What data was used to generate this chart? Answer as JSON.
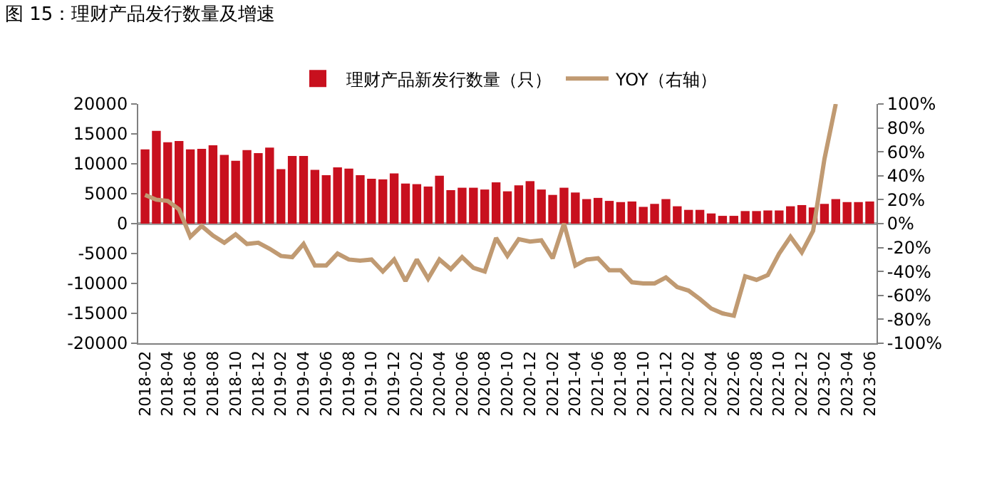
{
  "chart_data": {
    "type": "bar",
    "title": "图 15：理财产品发行数量及增速",
    "categories": [
      "2018-02",
      null,
      "2018-04",
      null,
      "2018-06",
      null,
      "2018-08",
      null,
      "2018-10",
      null,
      "2018-12",
      null,
      "2019-02",
      null,
      "2019-04",
      null,
      "2019-06",
      null,
      "2019-08",
      null,
      "2019-10",
      null,
      "2019-12",
      null,
      "2020-02",
      null,
      "2020-04",
      null,
      "2020-06",
      null,
      "2020-08",
      null,
      "2020-10",
      null,
      "2020-12",
      null,
      "2021-02",
      null,
      "2021-04",
      null,
      "2021-06",
      null,
      "2021-08",
      null,
      "2021-10",
      null,
      "2021-12",
      null,
      "2022-02",
      null,
      "2022-04",
      null,
      "2022-06",
      null,
      "2022-08",
      null,
      "2022-10",
      null,
      "2022-12",
      null,
      "2023-02",
      null,
      "2023-04",
      null,
      "2023-06"
    ],
    "series": [
      {
        "name": "理财产品新发行数量（只）",
        "color": "#c8101e",
        "values": [
          12400,
          15500,
          13600,
          13800,
          12400,
          12500,
          13100,
          11500,
          10500,
          12300,
          11800,
          12700,
          9100,
          11300,
          11300,
          9000,
          8100,
          9400,
          9200,
          8100,
          7500,
          7400,
          8400,
          6700,
          6600,
          6200,
          8000,
          5600,
          6000,
          6000,
          5700,
          6900,
          5400,
          6400,
          7100,
          5700,
          4800,
          6000,
          5200,
          4100,
          4300,
          3800,
          3600,
          3700,
          2800,
          3300,
          4100,
          2900,
          2300,
          2300,
          1700,
          1300,
          1300,
          2100,
          2100,
          2200,
          2200,
          2900,
          3100,
          2700,
          3300,
          4100,
          3600,
          3600,
          3700
        ]
      },
      {
        "name": "YOY（右轴）",
        "type": "line",
        "axis": "y2",
        "color": "#c09a72",
        "values": [
          24,
          20,
          19,
          12,
          -11,
          -2,
          -10,
          -16,
          -9,
          -17,
          -16,
          -21,
          -27,
          -28,
          -17,
          -35,
          -35,
          -25,
          -30,
          -31,
          -30,
          -40,
          -30,
          -48,
          -30,
          -46,
          -30,
          -38,
          -28,
          -37,
          -40,
          -12,
          -27,
          -13,
          -15,
          -14,
          -29,
          0,
          -35,
          -30,
          -29,
          -39,
          -39,
          -49,
          -50,
          -50,
          -45,
          -53,
          -56,
          -63,
          -71,
          -75,
          -77,
          -44,
          -47,
          -43,
          -25,
          -11,
          -24,
          -6,
          54,
          100,
          null,
          null,
          null
        ]
      }
    ],
    "ylim": [
      -20000,
      20000
    ],
    "yticks": [
      -20000,
      -15000,
      -10000,
      -5000,
      0,
      5000,
      10000,
      15000,
      20000
    ],
    "y2lim": [
      -100,
      100
    ],
    "y2ticks": [
      {
        "value": -100,
        "label": "-100%"
      },
      {
        "value": -80,
        "label": "-80%"
      },
      {
        "value": -60,
        "label": "-60%"
      },
      {
        "value": -40,
        "label": "-40%"
      },
      {
        "value": -20,
        "label": "-20%"
      },
      {
        "value": 0,
        "label": "0%"
      },
      {
        "value": 20,
        "label": "20%"
      },
      {
        "value": 40,
        "label": "40%"
      },
      {
        "value": 60,
        "label": "60%"
      },
      {
        "value": 80,
        "label": "80%"
      },
      {
        "value": 100,
        "label": "100%"
      }
    ],
    "ref_lines": [
      {
        "axis": "y",
        "value": 0,
        "color": "#a0a0a0"
      }
    ],
    "grid": false,
    "legend": "top"
  }
}
